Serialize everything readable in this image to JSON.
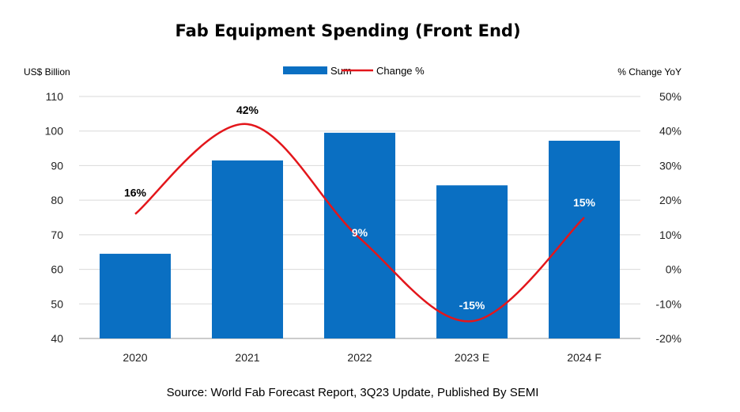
{
  "chart_data": {
    "type": "bar",
    "title": "Fab Equipment Spending (Front End)",
    "categories": [
      "2020",
      "2021",
      "2022",
      "2023 E",
      "2024 F"
    ],
    "series": [
      {
        "name": "Sum",
        "kind": "bar",
        "axis": "left",
        "color": "#0a6fc2",
        "values": [
          64.5,
          91.5,
          99.5,
          84.3,
          97.2
        ]
      },
      {
        "name": "Change %",
        "kind": "line",
        "axis": "right",
        "color": "#e3161b",
        "values": [
          16,
          42,
          9,
          -15,
          15
        ],
        "labels": [
          "16%",
          "42%",
          "9%",
          "-15%",
          "15%"
        ]
      }
    ],
    "ylabel_left": "US$ Billion",
    "ylabel_right": "% Change YoY",
    "ylim_left": [
      40,
      110
    ],
    "ylim_right": [
      -20,
      50
    ],
    "yticks_left": [
      "110",
      "100",
      "90",
      "80",
      "70",
      "60",
      "50",
      "40"
    ],
    "yticks_right": [
      "50%",
      "40%",
      "30%",
      "20%",
      "10%",
      "0%",
      "-10%",
      "-20%"
    ],
    "grid": true,
    "legend_position": "top-center",
    "source": "Source: World Fab Forecast Report, 3Q23 Update, Published By SEMI"
  }
}
